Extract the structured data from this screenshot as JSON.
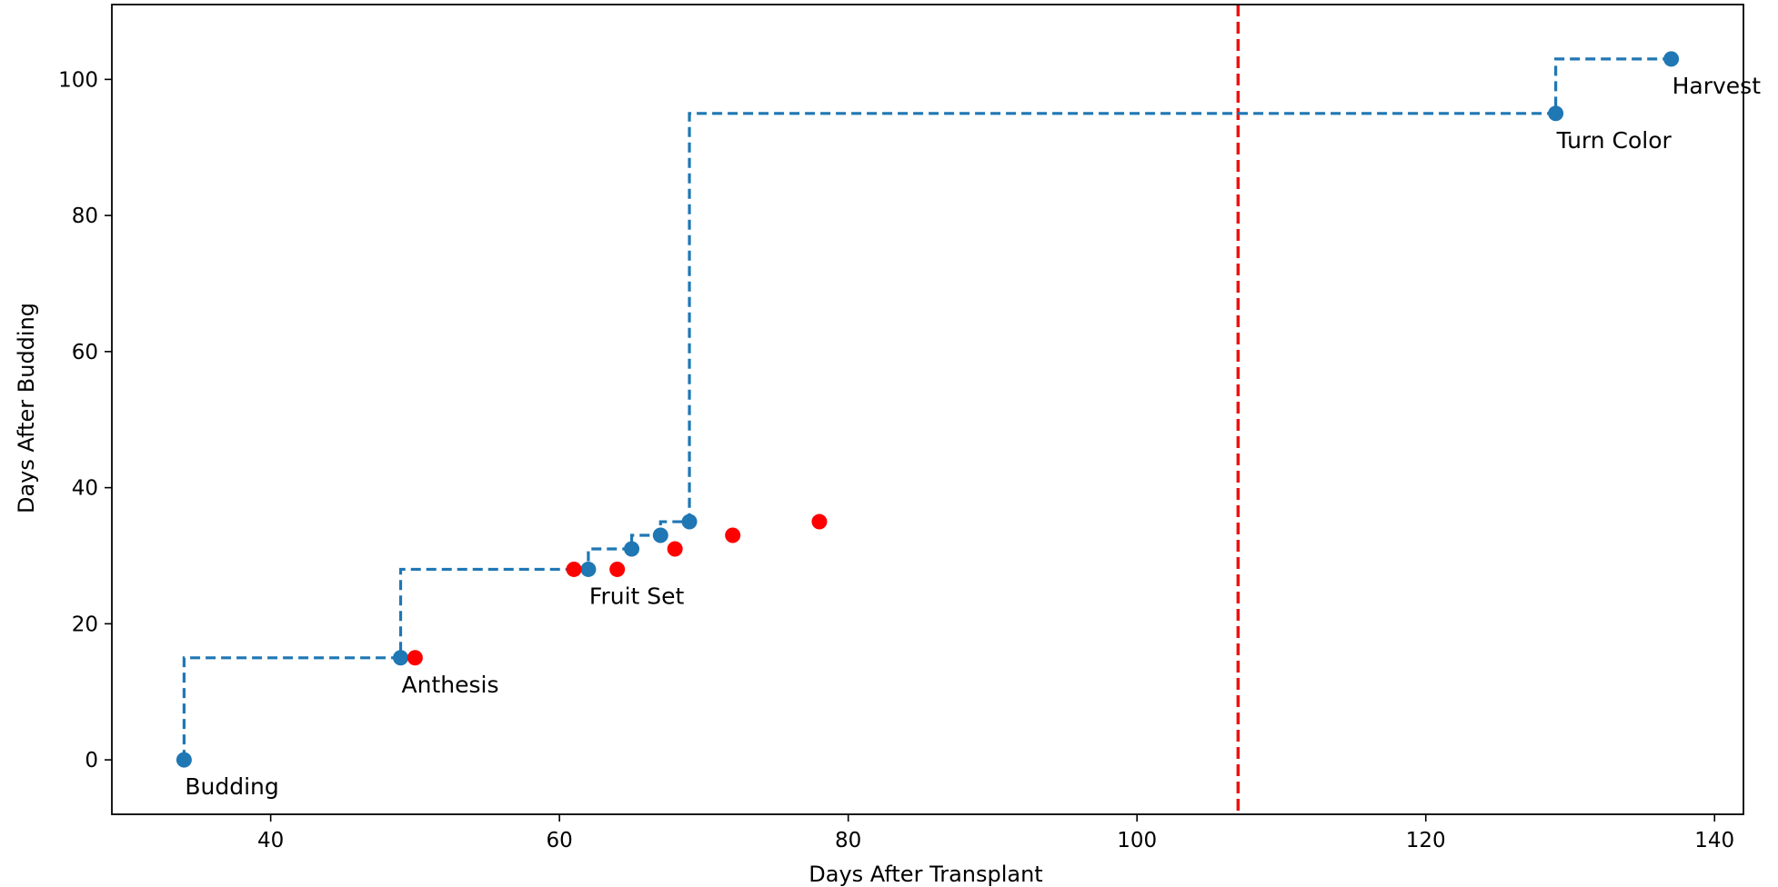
{
  "chart_data": {
    "type": "scatter",
    "title": "",
    "xlabel": "Days After Transplant",
    "ylabel": "Days After Budding",
    "xlim": [
      29,
      142
    ],
    "ylim": [
      -8,
      111
    ],
    "xticks": [
      40,
      60,
      80,
      100,
      120,
      140
    ],
    "yticks": [
      0,
      20,
      40,
      60,
      80,
      100
    ],
    "grid": false,
    "colors": {
      "blue": "#1f77b4",
      "red": "#ff0000",
      "vline": "#ee1111"
    },
    "stage_path": {
      "style": "dashed-step",
      "x": [
        34,
        49,
        62,
        65,
        67,
        69,
        129,
        137
      ],
      "y": [
        0,
        15,
        28,
        31,
        33,
        35,
        95,
        103
      ]
    },
    "blue_points": {
      "x": [
        34,
        49,
        62,
        65,
        67,
        69,
        129,
        137
      ],
      "y": [
        0,
        15,
        28,
        31,
        33,
        35,
        95,
        103
      ]
    },
    "red_points": {
      "x": [
        50,
        61,
        64,
        68,
        72,
        78
      ],
      "y": [
        15,
        28,
        28,
        31,
        33,
        35
      ]
    },
    "vline": {
      "x": 107,
      "style": "dashed"
    },
    "annotations": [
      {
        "text": "Budding",
        "x": 34,
        "y": 0
      },
      {
        "text": "Anthesis",
        "x": 49,
        "y": 15
      },
      {
        "text": "Fruit Set",
        "x": 62,
        "y": 28
      },
      {
        "text": "Turn Color",
        "x": 129,
        "y": 95
      },
      {
        "text": "Harvest",
        "x": 137,
        "y": 103
      }
    ]
  }
}
